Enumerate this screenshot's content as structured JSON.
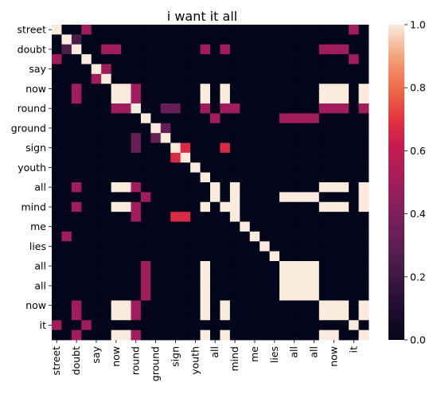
{
  "chart_data": {
    "type": "heatmap",
    "title": "i want it all",
    "tokens": [
      "street",
      "doubt",
      "doubt",
      "say",
      "say",
      "now",
      "now",
      "round",
      "round",
      "ground",
      "ground",
      "sign",
      "sign",
      "youth",
      "youth",
      "all",
      "all",
      "mind",
      "mind",
      "me",
      "me",
      "lies",
      "lies",
      "all",
      "all",
      "all",
      "all",
      "now",
      "now",
      "now",
      "it",
      "it"
    ],
    "x_tick_labels": [
      "street",
      "doubt",
      "say",
      "now",
      "round",
      "ground",
      "sign",
      "youth",
      "all",
      "mind",
      "me",
      "lies",
      "all",
      "all",
      "now",
      "it"
    ],
    "y_tick_labels": [
      "street",
      "doubt",
      "say",
      "now",
      "round",
      "ground",
      "sign",
      "youth",
      "all",
      "mind",
      "me",
      "lies",
      "all",
      "all",
      "now",
      "it"
    ],
    "colorbar": {
      "ticks": [
        0.0,
        0.2,
        0.4,
        0.6,
        0.8,
        1.0
      ],
      "min": 0.0,
      "max": 1.0,
      "colormap": "rocket"
    },
    "matrix": [
      [
        1,
        0,
        0,
        0.5,
        0,
        0,
        0,
        0,
        0,
        0,
        0,
        0,
        0,
        0,
        0,
        0,
        0,
        0,
        0,
        0,
        0,
        0,
        0,
        0,
        0,
        0,
        0,
        0,
        0,
        0,
        0.5,
        0
      ],
      [
        0,
        1,
        0.25,
        0,
        0,
        0,
        0,
        0,
        0,
        0,
        0,
        0,
        0,
        0,
        0,
        0,
        0,
        0,
        0,
        0,
        0,
        0,
        0,
        0,
        0,
        0,
        0,
        0,
        0,
        0,
        0,
        0
      ],
      [
        0,
        0.25,
        1,
        0,
        0,
        0.5,
        0.5,
        0,
        0,
        0,
        0,
        0,
        0,
        0,
        0,
        0.5,
        0,
        0.5,
        0,
        0,
        0,
        0,
        0,
        0,
        0,
        0,
        0,
        0.5,
        0.5,
        0.5,
        0,
        0
      ],
      [
        0.5,
        0,
        0,
        1,
        0,
        0,
        0,
        0,
        0,
        0,
        0,
        0,
        0,
        0,
        0,
        0,
        0,
        0,
        0,
        0,
        0,
        0,
        0,
        0,
        0,
        0,
        0,
        0,
        0,
        0,
        0.5,
        0
      ],
      [
        0,
        0,
        0,
        0,
        1,
        0.5,
        0,
        0,
        0,
        0,
        0,
        0,
        0,
        0,
        0,
        0,
        0,
        0,
        0,
        0,
        0,
        0,
        0,
        0,
        0,
        0,
        0,
        0,
        0,
        0,
        0,
        0
      ],
      [
        0,
        0,
        0,
        0,
        0.5,
        1,
        0,
        0,
        0,
        0,
        0,
        0,
        0,
        0,
        0,
        0,
        0,
        0,
        0,
        0,
        0,
        0,
        0,
        0,
        0,
        0,
        0,
        0,
        0,
        0,
        0,
        0
      ],
      [
        0,
        0,
        0.5,
        0,
        0,
        0,
        1,
        1,
        0.5,
        0,
        0,
        0,
        0,
        0,
        0,
        1,
        0,
        1,
        0,
        0,
        0,
        0,
        0,
        0,
        0,
        0,
        0,
        1,
        1,
        1,
        0,
        1
      ],
      [
        0,
        0,
        0.5,
        0,
        0,
        0,
        1,
        1,
        0.5,
        0,
        0,
        0,
        0,
        0,
        0,
        1,
        0,
        1,
        0,
        0,
        0,
        0,
        0,
        0,
        0,
        0,
        0,
        1,
        1,
        1,
        0,
        1
      ],
      [
        0,
        0,
        0,
        0,
        0,
        0,
        0.5,
        0.5,
        1,
        0,
        0,
        0.33,
        0.33,
        0,
        0,
        0.5,
        0,
        0.5,
        0.5,
        0,
        0,
        0,
        0,
        0,
        0,
        0,
        0,
        0.5,
        0.5,
        0.5,
        0,
        0.5
      ],
      [
        0,
        0,
        0,
        0,
        0,
        0,
        0,
        0,
        0,
        1,
        0,
        0,
        0,
        0,
        0,
        0,
        0.5,
        0,
        0,
        0,
        0,
        0,
        0,
        0.5,
        0.5,
        0.5,
        0.5,
        0,
        0,
        0,
        0,
        0
      ],
      [
        0,
        0,
        0,
        0,
        0,
        0,
        0,
        0,
        0,
        0,
        1,
        0.33,
        0,
        0,
        0,
        0,
        0,
        0,
        0,
        0,
        0,
        0,
        0,
        0,
        0,
        0,
        0,
        0,
        0,
        0,
        0,
        0
      ],
      [
        0,
        0,
        0,
        0,
        0,
        0,
        0,
        0,
        0.33,
        0,
        0.33,
        1,
        0,
        0,
        0,
        0,
        0,
        0,
        0,
        0,
        0,
        0,
        0,
        0,
        0,
        0,
        0,
        0,
        0,
        0,
        0,
        0
      ],
      [
        0,
        0,
        0,
        0,
        0,
        0,
        0,
        0,
        0.33,
        0,
        0,
        0,
        1,
        0.67,
        0,
        0,
        0,
        0.67,
        0,
        0,
        0,
        0,
        0,
        0,
        0,
        0,
        0,
        0,
        0,
        0,
        0,
        0
      ],
      [
        0,
        0,
        0,
        0,
        0,
        0,
        0,
        0,
        0,
        0,
        0,
        0,
        0.67,
        1,
        0,
        0,
        0,
        0,
        0,
        0,
        0,
        0,
        0,
        0,
        0,
        0,
        0,
        0,
        0,
        0,
        0,
        0
      ],
      [
        0,
        0,
        0,
        0,
        0,
        0,
        0,
        0,
        0,
        0,
        0,
        0,
        0,
        0,
        1,
        0,
        0,
        0,
        0,
        0,
        0,
        0,
        0,
        0,
        0,
        0,
        0,
        0,
        0,
        0,
        0,
        0
      ],
      [
        0,
        0,
        0,
        0,
        0,
        0,
        0,
        0,
        0,
        0,
        0,
        0,
        0,
        0,
        0,
        1,
        0,
        0,
        0,
        0,
        0,
        0,
        0,
        0,
        0,
        0,
        0,
        0,
        0,
        0,
        0,
        0
      ],
      [
        0,
        0,
        0.5,
        0,
        0,
        0,
        1,
        1,
        0.5,
        0,
        0,
        0,
        0,
        0,
        0,
        0,
        1,
        0,
        1,
        0,
        0,
        0,
        0,
        0,
        0,
        0,
        0,
        1,
        1,
        1,
        0,
        1
      ],
      [
        0,
        0,
        0,
        0,
        0,
        0,
        0,
        0,
        0,
        0.5,
        0,
        0,
        0,
        0,
        0,
        0,
        1,
        0,
        1,
        0,
        0,
        0,
        0,
        1,
        1,
        1,
        1,
        0,
        0,
        0,
        0,
        1
      ],
      [
        0,
        0,
        0.5,
        0,
        0,
        0,
        1,
        1,
        0.5,
        0,
        0,
        0,
        0,
        0,
        0,
        1,
        0,
        1,
        1,
        0,
        0,
        0,
        0,
        0,
        0,
        0,
        0,
        1,
        1,
        1,
        0,
        1
      ],
      [
        0,
        0,
        0,
        0,
        0,
        0,
        0,
        0,
        0.5,
        0,
        0,
        0,
        0.67,
        0.67,
        0,
        0,
        0,
        0,
        1,
        0,
        0,
        0,
        0,
        0,
        0,
        0,
        0,
        0,
        0,
        0,
        0,
        0
      ],
      [
        0,
        0,
        0,
        0,
        0,
        0,
        0,
        0,
        0,
        0,
        0,
        0,
        0,
        0,
        0,
        0,
        0,
        0,
        0,
        1,
        0,
        0,
        0,
        0,
        0,
        0,
        0,
        0,
        0,
        0,
        0,
        0
      ],
      [
        0,
        0.5,
        0,
        0,
        0,
        0,
        0,
        0,
        0,
        0,
        0,
        0,
        0,
        0,
        0,
        0,
        0,
        0,
        0,
        0,
        1,
        0,
        0,
        0,
        0,
        0,
        0,
        0,
        0,
        0,
        0,
        0
      ],
      [
        0,
        0,
        0,
        0,
        0,
        0,
        0,
        0,
        0,
        0,
        0,
        0,
        0,
        0,
        0,
        0,
        0,
        0,
        0,
        0,
        0,
        1,
        0,
        0,
        0,
        0,
        0,
        0,
        0,
        0,
        0,
        0
      ],
      [
        0,
        0,
        0,
        0,
        0,
        0,
        0,
        0,
        0,
        0,
        0,
        0,
        0,
        0,
        0,
        0,
        0,
        0,
        0,
        0,
        0,
        0,
        1,
        0,
        0,
        0,
        0,
        0,
        0,
        0,
        0,
        0
      ],
      [
        0,
        0,
        0,
        0,
        0,
        0,
        0,
        0,
        0,
        0.5,
        0,
        0,
        0,
        0,
        0,
        1,
        0,
        0,
        0,
        0,
        0,
        0,
        0,
        1,
        1,
        1,
        1,
        0,
        0,
        0,
        0,
        0
      ],
      [
        0,
        0,
        0,
        0,
        0,
        0,
        0,
        0,
        0,
        0.5,
        0,
        0,
        0,
        0,
        0,
        1,
        0,
        0,
        0,
        0,
        0,
        0,
        0,
        1,
        1,
        1,
        1,
        0,
        0,
        0,
        0,
        0
      ],
      [
        0,
        0,
        0,
        0,
        0,
        0,
        0,
        0,
        0,
        0.5,
        0,
        0,
        0,
        0,
        0,
        1,
        0,
        0,
        0,
        0,
        0,
        0,
        0,
        1,
        1,
        1,
        1,
        0,
        0,
        0,
        0,
        0
      ],
      [
        0,
        0,
        0,
        0,
        0,
        0,
        0,
        0,
        0,
        0.5,
        0,
        0,
        0,
        0,
        0,
        1,
        0,
        0,
        0,
        0,
        0,
        0,
        0,
        1,
        1,
        1,
        1,
        0,
        0,
        0,
        0,
        0
      ],
      [
        0,
        0,
        0.5,
        0,
        0,
        0,
        1,
        1,
        0.5,
        0,
        0,
        0,
        0,
        0,
        0,
        1,
        0,
        1,
        0,
        0,
        0,
        0,
        0,
        0,
        0,
        0,
        0,
        1,
        1,
        1,
        0,
        1
      ],
      [
        0,
        0,
        0.5,
        0,
        0,
        0,
        1,
        1,
        0.5,
        0,
        0,
        0,
        0,
        0,
        0,
        1,
        0,
        1,
        0,
        0,
        0,
        0,
        0,
        0,
        0,
        0,
        0,
        1,
        1,
        1,
        0,
        1
      ],
      [
        0.5,
        0,
        0,
        0.5,
        0,
        0,
        0,
        0,
        0,
        0,
        0,
        0,
        0,
        0,
        0,
        0,
        0,
        0,
        0,
        0,
        0,
        0,
        0,
        0,
        0,
        0,
        0,
        0,
        0,
        0,
        1,
        0
      ],
      [
        0,
        0,
        0.5,
        0,
        0,
        0,
        1,
        1,
        0.5,
        0,
        0,
        0,
        0,
        0,
        0,
        1,
        0,
        1,
        0,
        0,
        0,
        0,
        0,
        0,
        0,
        0,
        0,
        1,
        1,
        0,
        0,
        1
      ]
    ]
  }
}
